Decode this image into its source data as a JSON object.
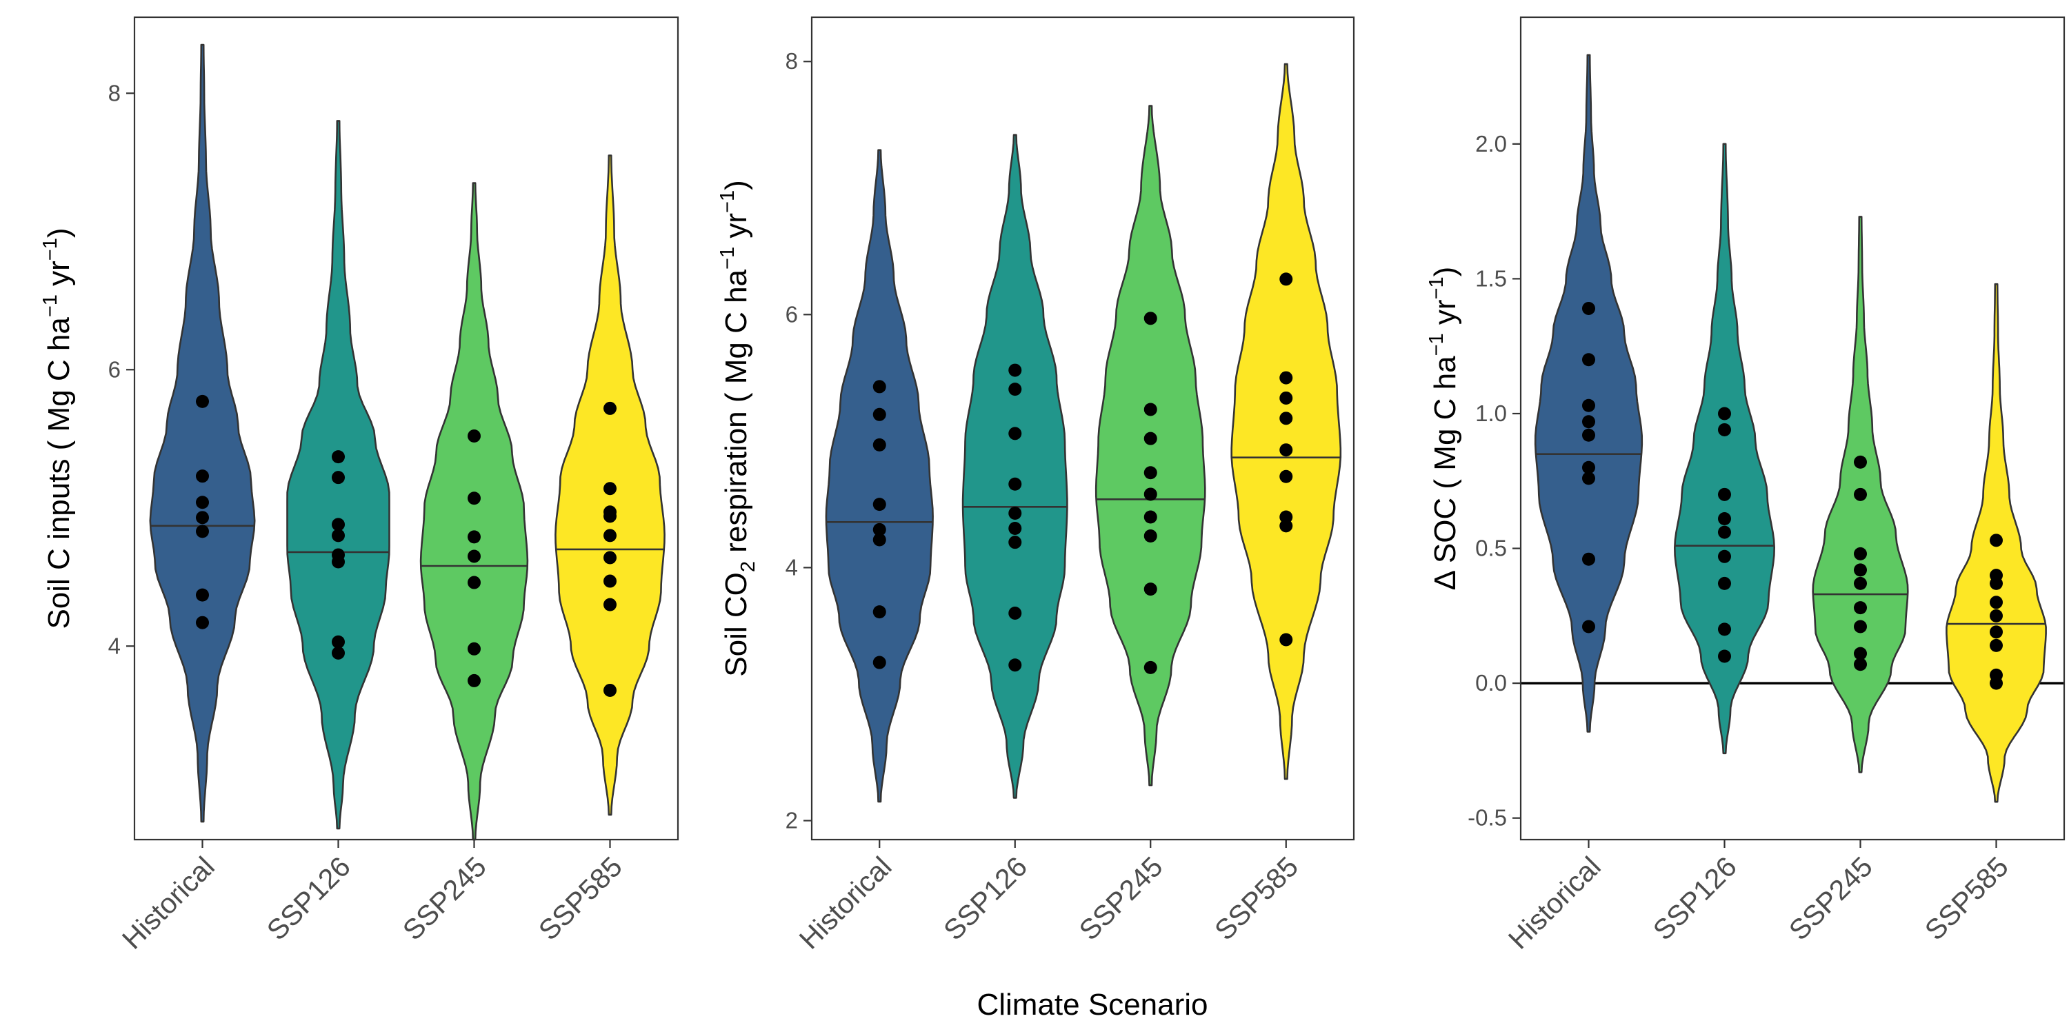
{
  "xaxis_title": "Climate Scenario",
  "colors": {
    "Historical": "#355f8d",
    "SSP126": "#21968b",
    "SSP245": "#5ec962",
    "SSP585": "#fde725",
    "outline": "#333333",
    "frame": "#333333",
    "points": "#000000"
  },
  "chart_data": [
    {
      "type": "violin",
      "ylabel": "Soil C inputs ( Mg C ha−1 yr−1)",
      "ylabel_parts": {
        "main": "Soil C inputs ( Mg C ha",
        "sup1": "−1",
        "mid": " yr",
        "sup2": "−1",
        "end": ")"
      },
      "ylim": [
        2.6,
        8.55
      ],
      "yticks": [
        4,
        6,
        8
      ],
      "ytick_labels": [
        "4",
        "6",
        "8"
      ],
      "grid": false,
      "zero_line": null,
      "categories": [
        "Historical",
        "SSP126",
        "SSP245",
        "SSP585"
      ],
      "violins": [
        {
          "name": "Historical",
          "min": 2.73,
          "max": 8.35,
          "median": 4.87,
          "shape": [
            [
              2.73,
              0.02
            ],
            [
              3.2,
              0.08
            ],
            [
              3.7,
              0.25
            ],
            [
              4.2,
              0.55
            ],
            [
              4.6,
              0.8
            ],
            [
              4.9,
              0.88
            ],
            [
              5.2,
              0.82
            ],
            [
              5.6,
              0.6
            ],
            [
              6.0,
              0.42
            ],
            [
              6.5,
              0.28
            ],
            [
              7.0,
              0.14
            ],
            [
              7.5,
              0.06
            ],
            [
              8.0,
              0.03
            ],
            [
              8.35,
              0.02
            ]
          ],
          "points": [
            5.77,
            5.23,
            5.04,
            4.93,
            4.83,
            4.37,
            4.17
          ]
        },
        {
          "name": "SSP126",
          "min": 2.68,
          "max": 7.8,
          "median": 4.68,
          "shape": [
            [
              2.68,
              0.02
            ],
            [
              3.0,
              0.08
            ],
            [
              3.5,
              0.28
            ],
            [
              4.0,
              0.6
            ],
            [
              4.4,
              0.8
            ],
            [
              4.7,
              0.86
            ],
            [
              5.1,
              0.86
            ],
            [
              5.5,
              0.62
            ],
            [
              5.9,
              0.32
            ],
            [
              6.3,
              0.2
            ],
            [
              6.8,
              0.1
            ],
            [
              7.3,
              0.05
            ],
            [
              7.8,
              0.02
            ]
          ],
          "points": [
            5.37,
            5.22,
            4.88,
            4.8,
            4.66,
            4.61,
            4.03,
            3.95
          ]
        },
        {
          "name": "SSP245",
          "min": 2.6,
          "max": 7.35,
          "median": 4.58,
          "shape": [
            [
              2.6,
              0.02
            ],
            [
              3.0,
              0.1
            ],
            [
              3.5,
              0.35
            ],
            [
              3.9,
              0.65
            ],
            [
              4.3,
              0.84
            ],
            [
              4.6,
              0.9
            ],
            [
              5.0,
              0.84
            ],
            [
              5.4,
              0.64
            ],
            [
              5.8,
              0.4
            ],
            [
              6.2,
              0.24
            ],
            [
              6.6,
              0.12
            ],
            [
              7.0,
              0.05
            ],
            [
              7.35,
              0.02
            ]
          ],
          "points": [
            5.52,
            5.07,
            4.79,
            4.65,
            4.46,
            3.98,
            3.75
          ]
        },
        {
          "name": "SSP585",
          "min": 2.78,
          "max": 7.55,
          "median": 4.7,
          "shape": [
            [
              2.78,
              0.02
            ],
            [
              3.2,
              0.12
            ],
            [
              3.6,
              0.38
            ],
            [
              4.0,
              0.66
            ],
            [
              4.4,
              0.86
            ],
            [
              4.8,
              0.92
            ],
            [
              5.2,
              0.84
            ],
            [
              5.6,
              0.6
            ],
            [
              6.0,
              0.38
            ],
            [
              6.5,
              0.18
            ],
            [
              7.0,
              0.07
            ],
            [
              7.55,
              0.02
            ]
          ],
          "points": [
            5.72,
            5.14,
            4.97,
            4.94,
            4.8,
            4.64,
            4.47,
            4.3,
            3.68
          ]
        }
      ]
    },
    {
      "type": "violin",
      "ylabel": "Soil CO2 respiration ( Mg C ha−1 yr−1)",
      "ylabel_parts": {
        "pre": "Soil CO",
        "sub": "2",
        "main": " respiration ( Mg C ha",
        "sup1": "−1",
        "mid": " yr",
        "sup2": "−1",
        "end": ")"
      },
      "ylim": [
        1.85,
        8.35
      ],
      "yticks": [
        2,
        4,
        6,
        8
      ],
      "ytick_labels": [
        "2",
        "4",
        "6",
        "8"
      ],
      "grid": false,
      "zero_line": null,
      "categories": [
        "Historical",
        "SSP126",
        "SSP245",
        "SSP585"
      ],
      "violins": [
        {
          "name": "Historical",
          "min": 2.15,
          "max": 7.3,
          "median": 4.36,
          "shape": [
            [
              2.15,
              0.02
            ],
            [
              2.6,
              0.12
            ],
            [
              3.1,
              0.35
            ],
            [
              3.6,
              0.68
            ],
            [
              4.0,
              0.86
            ],
            [
              4.4,
              0.9
            ],
            [
              4.8,
              0.84
            ],
            [
              5.3,
              0.66
            ],
            [
              5.8,
              0.45
            ],
            [
              6.3,
              0.24
            ],
            [
              6.8,
              0.1
            ],
            [
              7.3,
              0.02
            ]
          ],
          "points": [
            5.43,
            5.21,
            4.97,
            4.5,
            4.3,
            4.22,
            3.65,
            3.25
          ]
        },
        {
          "name": "SSP126",
          "min": 2.18,
          "max": 7.42,
          "median": 4.48,
          "shape": [
            [
              2.18,
              0.02
            ],
            [
              2.6,
              0.14
            ],
            [
              3.1,
              0.4
            ],
            [
              3.6,
              0.7
            ],
            [
              4.0,
              0.84
            ],
            [
              4.5,
              0.88
            ],
            [
              5.0,
              0.84
            ],
            [
              5.5,
              0.7
            ],
            [
              6.0,
              0.48
            ],
            [
              6.5,
              0.26
            ],
            [
              7.0,
              0.1
            ],
            [
              7.42,
              0.02
            ]
          ],
          "points": [
            5.56,
            5.41,
            5.06,
            4.66,
            4.43,
            4.31,
            4.2,
            3.64,
            3.23
          ]
        },
        {
          "name": "SSP245",
          "min": 2.28,
          "max": 7.65,
          "median": 4.54,
          "shape": [
            [
              2.28,
              0.02
            ],
            [
              2.7,
              0.1
            ],
            [
              3.2,
              0.35
            ],
            [
              3.7,
              0.68
            ],
            [
              4.2,
              0.86
            ],
            [
              4.6,
              0.92
            ],
            [
              5.0,
              0.88
            ],
            [
              5.5,
              0.76
            ],
            [
              6.0,
              0.58
            ],
            [
              6.5,
              0.36
            ],
            [
              7.0,
              0.16
            ],
            [
              7.65,
              0.02
            ]
          ],
          "points": [
            5.97,
            5.25,
            5.02,
            4.75,
            4.58,
            4.4,
            4.25,
            3.83,
            3.21
          ]
        },
        {
          "name": "SSP585",
          "min": 2.33,
          "max": 7.98,
          "median": 4.87,
          "shape": [
            [
              2.33,
              0.02
            ],
            [
              2.8,
              0.1
            ],
            [
              3.3,
              0.3
            ],
            [
              3.9,
              0.58
            ],
            [
              4.4,
              0.8
            ],
            [
              4.9,
              0.92
            ],
            [
              5.4,
              0.86
            ],
            [
              5.9,
              0.7
            ],
            [
              6.4,
              0.5
            ],
            [
              6.9,
              0.3
            ],
            [
              7.4,
              0.14
            ],
            [
              7.98,
              0.02
            ]
          ],
          "points": [
            6.28,
            5.5,
            5.34,
            5.18,
            4.93,
            4.72,
            4.4,
            4.33,
            3.43
          ]
        }
      ]
    },
    {
      "type": "violin",
      "ylabel": "Δ SOC ( Mg C ha−1 yr−1)",
      "ylabel_parts": {
        "main": "Δ SOC ( Mg C ha",
        "sup1": "−1",
        "mid": " yr",
        "sup2": "−1",
        "end": ")"
      },
      "ylim": [
        -0.58,
        2.47
      ],
      "yticks": [
        -0.5,
        0.0,
        0.5,
        1.0,
        1.5,
        2.0
      ],
      "ytick_labels": [
        "-0.5",
        "0.0",
        "0.5",
        "1.0",
        "1.5",
        "2.0"
      ],
      "grid": false,
      "zero_line": 0.0,
      "categories": [
        "Historical",
        "SSP126",
        "SSP245",
        "SSP585"
      ],
      "violins": [
        {
          "name": "Historical",
          "min": -0.18,
          "max": 2.33,
          "median": 0.85,
          "shape": [
            [
              -0.18,
              0.02
            ],
            [
              0.0,
              0.1
            ],
            [
              0.2,
              0.28
            ],
            [
              0.45,
              0.6
            ],
            [
              0.7,
              0.84
            ],
            [
              0.9,
              0.9
            ],
            [
              1.1,
              0.8
            ],
            [
              1.3,
              0.6
            ],
            [
              1.5,
              0.38
            ],
            [
              1.7,
              0.2
            ],
            [
              1.9,
              0.09
            ],
            [
              2.1,
              0.04
            ],
            [
              2.33,
              0.02
            ]
          ],
          "points": [
            1.39,
            1.2,
            1.03,
            0.97,
            0.92,
            0.8,
            0.76,
            0.46,
            0.21
          ]
        },
        {
          "name": "SSP126",
          "min": -0.26,
          "max": 2.0,
          "median": 0.51,
          "shape": [
            [
              -0.26,
              0.02
            ],
            [
              -0.1,
              0.1
            ],
            [
              0.1,
              0.4
            ],
            [
              0.3,
              0.74
            ],
            [
              0.5,
              0.84
            ],
            [
              0.7,
              0.72
            ],
            [
              0.9,
              0.52
            ],
            [
              1.1,
              0.34
            ],
            [
              1.3,
              0.22
            ],
            [
              1.5,
              0.12
            ],
            [
              1.7,
              0.06
            ],
            [
              2.0,
              0.02
            ]
          ],
          "points": [
            1.0,
            0.94,
            0.7,
            0.61,
            0.56,
            0.47,
            0.37,
            0.2,
            0.1
          ]
        },
        {
          "name": "SSP245",
          "min": -0.33,
          "max": 1.73,
          "median": 0.33,
          "shape": [
            [
              -0.33,
              0.02
            ],
            [
              -0.15,
              0.14
            ],
            [
              0.05,
              0.52
            ],
            [
              0.2,
              0.76
            ],
            [
              0.35,
              0.8
            ],
            [
              0.55,
              0.6
            ],
            [
              0.75,
              0.34
            ],
            [
              0.95,
              0.2
            ],
            [
              1.15,
              0.12
            ],
            [
              1.35,
              0.06
            ],
            [
              1.55,
              0.03
            ],
            [
              1.73,
              0.02
            ]
          ],
          "points": [
            0.82,
            0.7,
            0.48,
            0.42,
            0.37,
            0.28,
            0.21,
            0.11,
            0.07
          ]
        },
        {
          "name": "SSP585",
          "min": -0.44,
          "max": 1.48,
          "median": 0.22,
          "shape": [
            [
              -0.44,
              0.02
            ],
            [
              -0.28,
              0.14
            ],
            [
              -0.1,
              0.52
            ],
            [
              0.05,
              0.8
            ],
            [
              0.2,
              0.84
            ],
            [
              0.35,
              0.68
            ],
            [
              0.5,
              0.42
            ],
            [
              0.7,
              0.22
            ],
            [
              0.9,
              0.12
            ],
            [
              1.1,
              0.06
            ],
            [
              1.3,
              0.03
            ],
            [
              1.48,
              0.02
            ]
          ],
          "points": [
            0.53,
            0.4,
            0.37,
            0.3,
            0.25,
            0.19,
            0.14,
            0.03,
            0.0
          ]
        }
      ]
    }
  ]
}
